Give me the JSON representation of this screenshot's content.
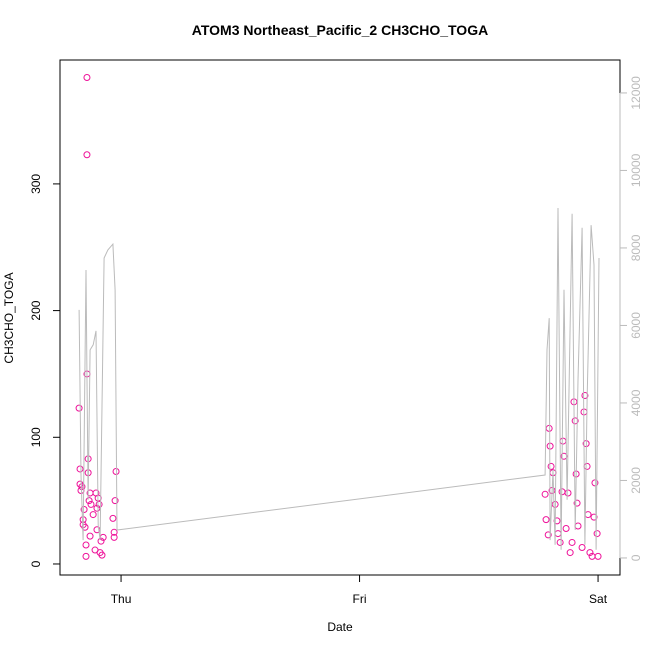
{
  "chart_data": {
    "type": "scatter",
    "title": "ATOM3 Northeast_Pacific_2 CH3CHO_TOGA",
    "x_label": "Date",
    "y_label": "CH3CHO_TOGA",
    "xlim": [
      -0.256,
      2.092
    ],
    "ylim": [
      -8.7,
      397.8
    ],
    "y2lim": [
      -440,
      12850
    ],
    "xticks": [
      {
        "value": 0,
        "label": "Thu"
      },
      {
        "value": 1,
        "label": "Fri"
      },
      {
        "value": 2,
        "label": "Sat"
      }
    ],
    "yticks": [
      0,
      100,
      200,
      300
    ],
    "y2ticks": [
      0,
      2000,
      4000,
      6000,
      8000,
      10000,
      12000
    ],
    "y2_color": "#bbbbbb",
    "series": [
      {
        "color": "#ee1199",
        "style": "points",
        "x": [
          -0.176,
          -0.172,
          -0.172,
          -0.168,
          -0.164,
          -0.159,
          -0.159,
          -0.155,
          -0.151,
          -0.147,
          -0.147,
          -0.143,
          -0.143,
          -0.143,
          -0.138,
          -0.138,
          -0.134,
          -0.13,
          -0.13,
          -0.126,
          -0.117,
          -0.109,
          -0.105,
          -0.101,
          -0.101,
          -0.096,
          -0.092,
          -0.088,
          -0.084,
          -0.08,
          -0.075,
          -0.034,
          -0.029,
          -0.029,
          -0.025,
          -0.021,
          1.778,
          1.782,
          1.791,
          1.795,
          1.799,
          1.803,
          1.807,
          1.811,
          1.82,
          1.828,
          1.832,
          1.841,
          1.849,
          1.853,
          1.857,
          1.866,
          1.874,
          1.883,
          1.891,
          1.899,
          1.904,
          1.908,
          1.912,
          1.916,
          1.933,
          1.941,
          1.945,
          1.95,
          1.954,
          1.958,
          1.966,
          1.975,
          1.983,
          1.987,
          1.996,
          2.0
        ],
        "values": [
          123,
          75,
          63,
          58,
          61,
          35,
          31,
          43,
          29,
          15,
          6,
          384,
          323,
          150,
          83,
          72,
          50,
          56,
          22,
          47,
          39,
          11,
          56,
          44,
          27,
          52,
          47,
          9,
          18,
          7,
          21,
          36,
          25,
          21,
          50,
          73,
          55,
          35,
          23,
          107,
          93,
          77,
          58,
          72,
          47,
          34,
          24,
          17,
          57,
          97,
          85,
          28,
          56,
          9,
          17,
          128,
          113,
          71,
          48,
          30,
          13,
          120,
          133,
          95,
          77,
          39,
          9,
          6,
          37,
          64,
          24,
          6
        ]
      },
      {
        "color": "#bbbbbb",
        "style": "line",
        "axis": "y2",
        "x": [
          -0.176,
          -0.168,
          -0.159,
          -0.147,
          -0.138,
          -0.13,
          -0.117,
          -0.105,
          -0.096,
          -0.088,
          -0.071,
          -0.055,
          -0.034,
          -0.025,
          -0.017,
          1.778,
          1.786,
          1.795,
          1.799,
          1.811,
          1.82,
          1.832,
          1.845,
          1.857,
          1.87,
          1.891,
          1.904,
          1.916,
          1.933,
          1.945,
          1.954,
          1.971,
          1.983,
          1.992,
          2.004
        ],
        "values": [
          6400,
          2140,
          460,
          7430,
          1500,
          5370,
          5500,
          5860,
          850,
          460,
          7740,
          7950,
          8100,
          6920,
          720,
          2140,
          5370,
          6190,
          460,
          2270,
          340,
          9030,
          210,
          6920,
          1500,
          8880,
          720,
          4590,
          8520,
          340,
          4080,
          8590,
          7560,
          210,
          7740
        ]
      }
    ]
  }
}
